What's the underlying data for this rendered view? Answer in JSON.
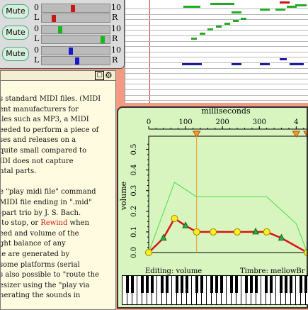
{
  "mixer": {
    "mute_label": "Mute",
    "channels": [
      {
        "low": "0",
        "high": "10",
        "left": "L",
        "right": "R",
        "volume": 0.45,
        "balance": 0.15,
        "color": "#c81818"
      },
      {
        "low": "0",
        "high": "10",
        "left": "L",
        "right": "R",
        "volume": 0.25,
        "balance": 0.92,
        "color": "#18b818"
      },
      {
        "low": "0",
        "high": "10",
        "left": "L",
        "right": "R",
        "volume": 0.42,
        "balance": 0.52,
        "color": "#1818c8"
      }
    ]
  },
  "text_panel": {
    "lines": [
      "s standard MIDI files. (MIDI",
      "ent manufacturers for",
      "iles such as MP3, a MIDI",
      "eeded to perform a piece of",
      "ses and releases on a",
      "quite small compared to",
      "IDI does not capture",
      "ntal parts.",
      "",
      "e \"play midi file\" command",
      "MIDI file ending in \".mid\"",
      "-part trio by J. S. Bach.",
      " to stop, or Rewind when",
      "eed and volume of the",
      "ght balance of any",
      "le are generated by",
      "some platforms (serial",
      "s also possible to \"route the",
      "esizer using the \"play via",
      "nerating the sounds in"
    ],
    "link_word": "Rewind"
  },
  "editor": {
    "axis_title": "milliseconds",
    "x_ticks": [
      "0",
      "100",
      "200",
      "300",
      "4"
    ],
    "y_ticks": [
      "0.0",
      "0.1",
      "0.2",
      "0.3",
      "0.4",
      "0.5"
    ],
    "y_label": "volume",
    "editing_text": "Editing: volume",
    "timbre_text": "Timbre: mellowBr"
  },
  "chart_data": {
    "type": "line",
    "xlabel": "milliseconds",
    "ylabel": "volume",
    "xlim": [
      0,
      430
    ],
    "ylim": [
      0,
      0.55
    ],
    "series": [
      {
        "values": [
          [
            0,
            0.0
          ],
          [
            70,
            0.34
          ],
          [
            130,
            0.27
          ],
          [
            320,
            0.27
          ],
          [
            400,
            0.14
          ],
          [
            430,
            0.0
          ]
        ],
        "color": "#44dd44"
      },
      {
        "values": [
          [
            0,
            0.0
          ],
          [
            40,
            0.07
          ],
          [
            70,
            0.165
          ],
          [
            100,
            0.13
          ],
          [
            130,
            0.1
          ],
          [
            175,
            0.1
          ],
          [
            240,
            0.1
          ],
          [
            290,
            0.1
          ],
          [
            320,
            0.1
          ],
          [
            360,
            0.07
          ],
          [
            430,
            0.0
          ]
        ],
        "color": "#dd1111"
      }
    ],
    "markers": {
      "yellow": [
        0,
        70,
        130,
        175,
        240,
        320,
        430
      ],
      "green": [
        40,
        100,
        290,
        360
      ]
    },
    "cursors": [
      130,
      430
    ],
    "cursor_marker_positions": [
      130,
      400,
      430
    ]
  }
}
